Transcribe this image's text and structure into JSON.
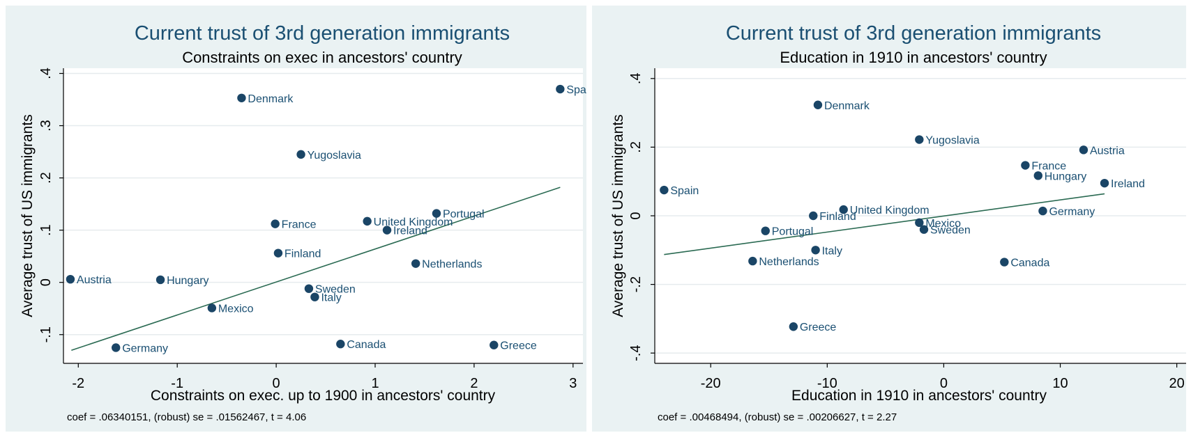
{
  "chart_data": [
    {
      "type": "scatter",
      "title": "Current trust of 3rd generation immigrants",
      "subtitle": "Constraints on exec in ancestors' country",
      "xlabel": "Constraints on exec. up to 1900 in ancestors' country",
      "ylabel": "Average trust of US immigrants",
      "xlim": [
        -2.15,
        3.1
      ],
      "ylim": [
        -0.155,
        0.41
      ],
      "xticks": [
        -2,
        -1,
        0,
        1,
        2,
        3
      ],
      "xtick_labels": [
        "-2",
        "-1",
        "0",
        "1",
        "2",
        "3"
      ],
      "yticks": [
        -0.1,
        0,
        0.1,
        0.2,
        0.3,
        0.4
      ],
      "ytick_labels": [
        "-.1",
        "0",
        ".1",
        ".2",
        ".3",
        ".4"
      ],
      "grid": true,
      "points": [
        {
          "label": "Denmark",
          "x": -0.35,
          "y": 0.353
        },
        {
          "label": "Spain",
          "x": 2.87,
          "y": 0.37
        },
        {
          "label": "Yugoslavia",
          "x": 0.25,
          "y": 0.245
        },
        {
          "label": "France",
          "x": -0.01,
          "y": 0.112
        },
        {
          "label": "United Kingdom",
          "x": 0.92,
          "y": 0.117
        },
        {
          "label": "Portugal",
          "x": 1.62,
          "y": 0.132
        },
        {
          "label": "Ireland",
          "x": 1.12,
          "y": 0.1
        },
        {
          "label": "Finland",
          "x": 0.02,
          "y": 0.056
        },
        {
          "label": "Netherlands",
          "x": 1.41,
          "y": 0.036
        },
        {
          "label": "Austria",
          "x": -2.08,
          "y": 0.006
        },
        {
          "label": "Hungary",
          "x": -1.17,
          "y": 0.005
        },
        {
          "label": "Sweden",
          "x": 0.33,
          "y": -0.012
        },
        {
          "label": "Italy",
          "x": 0.39,
          "y": -0.028
        },
        {
          "label": "Mexico",
          "x": -0.65,
          "y": -0.049
        },
        {
          "label": "Germany",
          "x": -1.62,
          "y": -0.125
        },
        {
          "label": "Canada",
          "x": 0.65,
          "y": -0.118
        },
        {
          "label": "Greece",
          "x": 2.2,
          "y": -0.12
        }
      ],
      "fit_line": {
        "x": [
          -2.07,
          2.87
        ],
        "y": [
          -0.13,
          0.182
        ]
      },
      "note": "coef = .06340151, (robust) se = .01562467, t = 4.06",
      "colors": {
        "marker": "#1a4566",
        "line": "#2a6a52",
        "grid": "#e6ebee",
        "outer_bg": "#eaf2f3",
        "plot_bg": "#ffffff"
      }
    },
    {
      "type": "scatter",
      "title": "Current trust of 3rd generation immigrants",
      "subtitle": "Education in 1910 in ancestors' country",
      "xlabel": "Education in 1910 in ancestors' country",
      "ylabel": "Average trust of US immigrants",
      "xlim": [
        -24.8,
        20.8
      ],
      "ylim": [
        -0.43,
        0.43
      ],
      "xticks": [
        -20,
        -10,
        0,
        10,
        20
      ],
      "xtick_labels": [
        "-20",
        "-10",
        "0",
        "10",
        "20"
      ],
      "yticks": [
        -0.4,
        -0.2,
        0,
        0.2,
        0.4
      ],
      "ytick_labels": [
        "-.4",
        "-.2",
        "0",
        ".2",
        ".4"
      ],
      "grid": true,
      "points": [
        {
          "label": "Denmark",
          "x": -10.8,
          "y": 0.323
        },
        {
          "label": "Yugoslavia",
          "x": -2.1,
          "y": 0.222
        },
        {
          "label": "Austria",
          "x": 12.0,
          "y": 0.192
        },
        {
          "label": "France",
          "x": 7.0,
          "y": 0.147
        },
        {
          "label": "Hungary",
          "x": 8.1,
          "y": 0.117
        },
        {
          "label": "Ireland",
          "x": 13.8,
          "y": 0.095
        },
        {
          "label": "Spain",
          "x": -24.0,
          "y": 0.075
        },
        {
          "label": "United Kingdom",
          "x": -8.6,
          "y": 0.018
        },
        {
          "label": "Germany",
          "x": 8.5,
          "y": 0.014
        },
        {
          "label": "Finland",
          "x": -11.2,
          "y": 0.0
        },
        {
          "label": "Mexico",
          "x": -2.1,
          "y": -0.02
        },
        {
          "label": "Sweden",
          "x": -1.7,
          "y": -0.04
        },
        {
          "label": "Portugal",
          "x": -15.3,
          "y": -0.044
        },
        {
          "label": "Italy",
          "x": -11.0,
          "y": -0.1
        },
        {
          "label": "Netherlands",
          "x": -16.4,
          "y": -0.132
        },
        {
          "label": "Canada",
          "x": 5.2,
          "y": -0.135
        },
        {
          "label": "Greece",
          "x": -12.9,
          "y": -0.323
        }
      ],
      "fit_line": {
        "x": [
          -24.0,
          13.8
        ],
        "y": [
          -0.113,
          0.064
        ]
      },
      "note": "coef = .00468494, (robust) se = .00206627, t = 2.27",
      "colors": {
        "marker": "#1a4566",
        "line": "#2a6a52",
        "grid": "#e6ebee",
        "outer_bg": "#eaf2f3",
        "plot_bg": "#ffffff"
      }
    }
  ]
}
